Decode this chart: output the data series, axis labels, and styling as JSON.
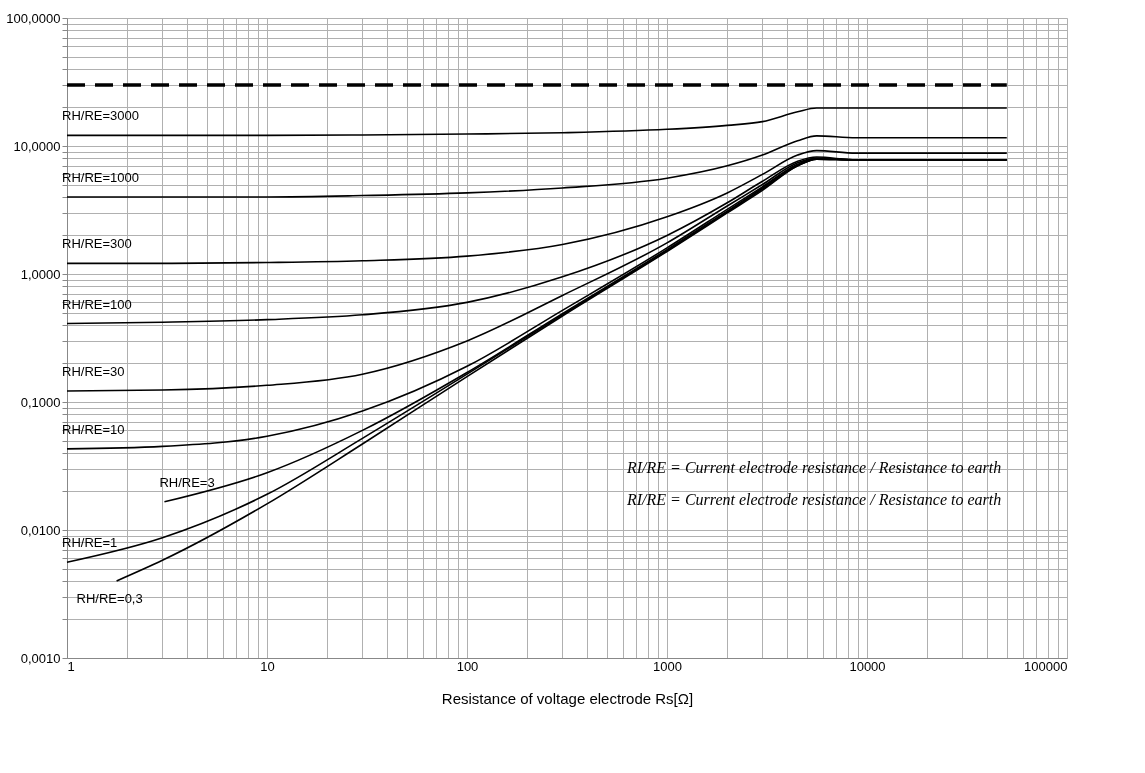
{
  "chart_data": {
    "type": "line",
    "xlabel": "Resistance of voltage electrode Rs[Ω]",
    "log": "xy",
    "grid": true,
    "legend": false,
    "marker": "none",
    "xlim": [
      1,
      100000
    ],
    "ylim": [
      0.001,
      100
    ],
    "xticks": [
      1,
      {
        "value": 2,
        "label": null
      },
      {
        "value": 3,
        "label": null
      },
      {
        "value": 4,
        "label": null
      },
      {
        "value": 5,
        "label": null
      },
      {
        "value": 6,
        "label": null
      },
      {
        "value": 7,
        "label": null
      },
      {
        "value": 8,
        "label": null
      },
      {
        "value": 9,
        "label": null
      },
      10,
      {
        "value": 20,
        "label": null
      },
      {
        "value": 30,
        "label": null
      },
      {
        "value": 40,
        "label": null
      },
      {
        "value": 50,
        "label": null
      },
      {
        "value": 60,
        "label": null
      },
      {
        "value": 70,
        "label": null
      },
      {
        "value": 80,
        "label": null
      },
      {
        "value": 90,
        "label": null
      },
      100,
      {
        "value": 200,
        "label": null
      },
      {
        "value": 300,
        "label": null
      },
      {
        "value": 400,
        "label": null
      },
      {
        "value": 500,
        "label": null
      },
      {
        "value": 600,
        "label": null
      },
      {
        "value": 700,
        "label": null
      },
      {
        "value": 800,
        "label": null
      },
      {
        "value": 900,
        "label": null
      },
      1000,
      {
        "value": 2000,
        "label": null
      },
      {
        "value": 3000,
        "label": null
      },
      {
        "value": 4000,
        "label": null
      },
      {
        "value": 5000,
        "label": null
      },
      {
        "value": 6000,
        "label": null
      },
      {
        "value": 7000,
        "label": null
      },
      {
        "value": 8000,
        "label": null
      },
      {
        "value": 9000,
        "label": null
      },
      10000,
      {
        "value": 20000,
        "label": null
      },
      {
        "value": 30000,
        "label": null
      },
      {
        "value": 40000,
        "label": null
      },
      {
        "value": 50000,
        "label": null
      },
      {
        "value": 60000,
        "label": null
      },
      {
        "value": 70000,
        "label": null
      },
      {
        "value": 80000,
        "label": null
      },
      {
        "value": 90000,
        "label": null
      },
      100000
    ],
    "yticks": [
      {
        "value": 0.001,
        "label": "0,0010"
      },
      {
        "value": 0.002,
        "label": null
      },
      {
        "value": 0.003,
        "label": null
      },
      {
        "value": 0.004,
        "label": null
      },
      {
        "value": 0.005,
        "label": null
      },
      {
        "value": 0.006,
        "label": null
      },
      {
        "value": 0.007,
        "label": null
      },
      {
        "value": 0.008,
        "label": null
      },
      {
        "value": 0.009,
        "label": null
      },
      {
        "value": 0.01,
        "label": "0,0100"
      },
      {
        "value": 0.02,
        "label": null
      },
      {
        "value": 0.03,
        "label": null
      },
      {
        "value": 0.04,
        "label": null
      },
      {
        "value": 0.05,
        "label": null
      },
      {
        "value": 0.06,
        "label": null
      },
      {
        "value": 0.07,
        "label": null
      },
      {
        "value": 0.08,
        "label": null
      },
      {
        "value": 0.09,
        "label": null
      },
      {
        "value": 0.1,
        "label": "0,1000"
      },
      {
        "value": 0.2,
        "label": null
      },
      {
        "value": 0.3,
        "label": null
      },
      {
        "value": 0.4,
        "label": null
      },
      {
        "value": 0.5,
        "label": null
      },
      {
        "value": 0.6,
        "label": null
      },
      {
        "value": 0.7,
        "label": null
      },
      {
        "value": 0.8,
        "label": null
      },
      {
        "value": 0.9,
        "label": null
      },
      {
        "value": 1,
        "label": "1,0000"
      },
      {
        "value": 2,
        "label": null
      },
      {
        "value": 3,
        "label": null
      },
      {
        "value": 4,
        "label": null
      },
      {
        "value": 5,
        "label": null
      },
      {
        "value": 6,
        "label": null
      },
      {
        "value": 7,
        "label": null
      },
      {
        "value": 8,
        "label": null
      },
      {
        "value": 9,
        "label": null
      },
      {
        "value": 10,
        "label": "10,0000"
      },
      {
        "value": 20,
        "label": null
      },
      {
        "value": 30,
        "label": null
      },
      {
        "value": 40,
        "label": null
      },
      {
        "value": 50,
        "label": null
      },
      {
        "value": 60,
        "label": null
      },
      {
        "value": 70,
        "label": null
      },
      {
        "value": 80,
        "label": null
      },
      {
        "value": 90,
        "label": null
      },
      {
        "value": 100,
        "label": "100,0000"
      }
    ],
    "series": [
      {
        "color": "#000000",
        "line_style": "dashed",
        "x": [
          1,
          50000
        ],
        "values": [
          30,
          30
        ]
      },
      {
        "name": "RH/RE=3000",
        "color": "#000000",
        "x": [
          1,
          3,
          10,
          30,
          100,
          300,
          1000,
          2000,
          3000,
          4500,
          5600,
          8800,
          50000
        ],
        "values": [
          12.1,
          12.1,
          12.1,
          12.2,
          12.4,
          12.7,
          13.5,
          14.5,
          15.5,
          18.5,
          19.8,
          19.8,
          19.8
        ]
      },
      {
        "name": "RH/RE=1000",
        "color": "#000000",
        "x": [
          1,
          3,
          10,
          30,
          100,
          300,
          1000,
          2000,
          3000,
          4500,
          5600,
          8800,
          50000
        ],
        "values": [
          4.0,
          4.0,
          4.0,
          4.1,
          4.3,
          4.7,
          5.6,
          7.0,
          8.5,
          11.0,
          12.0,
          11.6,
          11.6
        ]
      },
      {
        "name": "RH/RE=300",
        "color": "#000000",
        "x": [
          1,
          3,
          10,
          30,
          100,
          300,
          1000,
          2000,
          3000,
          4500,
          5600,
          8800,
          50000
        ],
        "values": [
          1.21,
          1.21,
          1.23,
          1.27,
          1.38,
          1.7,
          2.8,
          4.3,
          6.0,
          8.5,
          9.2,
          8.8,
          8.8
        ]
      },
      {
        "name": "RH/RE=100",
        "color": "#000000",
        "x": [
          1,
          3,
          10,
          30,
          100,
          300,
          1000,
          2000,
          3000,
          4500,
          5600,
          8800,
          50000
        ],
        "values": [
          0.41,
          0.42,
          0.44,
          0.48,
          0.6,
          0.95,
          2.0,
          3.6,
          5.3,
          7.6,
          8.2,
          7.8,
          7.8
        ]
      },
      {
        "name": "RH/RE=30",
        "color": "#000000",
        "x": [
          1,
          3,
          10,
          30,
          100,
          300,
          1000,
          2000,
          3000,
          4500,
          5600,
          8800,
          50000
        ],
        "values": [
          0.122,
          0.124,
          0.135,
          0.165,
          0.3,
          0.68,
          1.75,
          3.4,
          5.0,
          7.4,
          8.0,
          7.8,
          7.8
        ]
      },
      {
        "name": "RH/RE=10",
        "color": "#000000",
        "x": [
          1,
          3,
          10,
          30,
          100,
          300,
          1000,
          2000,
          3000,
          4500,
          5600,
          8800,
          50000
        ],
        "values": [
          0.043,
          0.045,
          0.054,
          0.085,
          0.19,
          0.52,
          1.6,
          3.2,
          4.8,
          7.2,
          8.0,
          7.8,
          7.8
        ]
      },
      {
        "name": "RH/RE=3",
        "color": "#000000",
        "x": [
          3.07,
          10,
          30,
          100,
          300,
          1000,
          2000,
          3000,
          4500,
          5600,
          8800,
          50000
        ],
        "values": [
          0.0166,
          0.028,
          0.06,
          0.17,
          0.49,
          1.55,
          3.1,
          4.7,
          7.1,
          7.9,
          7.8,
          7.8
        ]
      },
      {
        "name": "RH/RE=1",
        "color": "#000000",
        "x": [
          1,
          3,
          10,
          30,
          100,
          300,
          1000,
          2000,
          3000,
          4500,
          5600,
          8800,
          50000
        ],
        "values": [
          0.0056,
          0.0087,
          0.019,
          0.052,
          0.165,
          0.48,
          1.52,
          3.05,
          4.6,
          7.0,
          7.9,
          7.8,
          7.8
        ]
      },
      {
        "name": "RH/RE=0,3",
        "color": "#000000",
        "x": [
          1.77,
          3,
          10,
          30,
          100,
          300,
          1000,
          2000,
          3000,
          4500,
          5600,
          8800,
          50000
        ],
        "values": [
          0.004,
          0.0058,
          0.016,
          0.047,
          0.158,
          0.47,
          1.5,
          3.0,
          4.5,
          7.0,
          7.9,
          7.8,
          7.8
        ]
      }
    ],
    "annotations": [
      "RI/RE = Current electrode resistance / Resistance to earth",
      "RI/RE = Current electrode resistance / Resistance to earth"
    ]
  }
}
